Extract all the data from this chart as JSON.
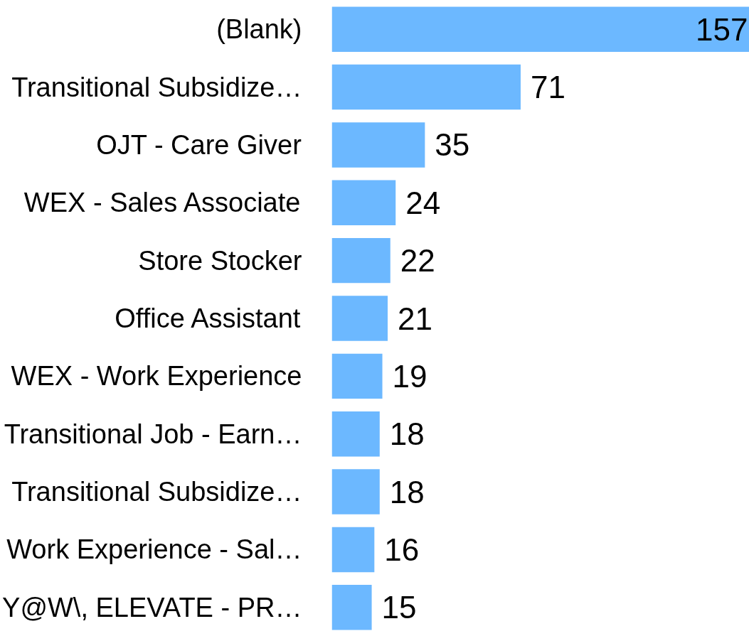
{
  "chart_data": {
    "type": "bar",
    "orientation": "horizontal",
    "categories": [
      "(Blank)",
      "Transitional Subsidize…",
      "OJT - Care Giver",
      "WEX - Sales Associate",
      "Store Stocker",
      "Office Assistant",
      "WEX - Work Experience",
      "Transitional Job - Earn…",
      "Transitional Subsidize…",
      "Work Experience - Sal…",
      "Y@W\\, ELEVATE - PR…"
    ],
    "values": [
      157,
      71,
      35,
      24,
      22,
      21,
      19,
      18,
      18,
      16,
      15
    ],
    "color": "#6cb8ff",
    "data_labels": true,
    "grid": false
  }
}
